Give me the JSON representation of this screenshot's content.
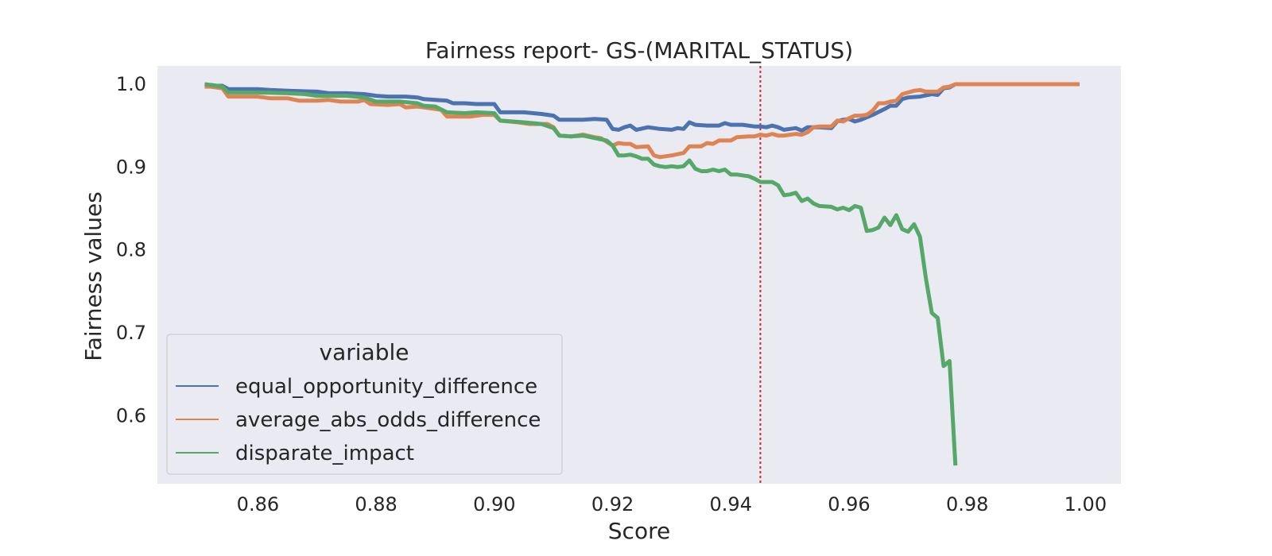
{
  "chart_data": {
    "type": "line",
    "title": "Fairness report- GS-(MARITAL_STATUS)",
    "xlabel": "Score",
    "ylabel": "Fairness values",
    "xlim": [
      0.843,
      1.006
    ],
    "ylim": [
      0.518,
      1.022
    ],
    "xticks": [
      0.86,
      0.88,
      0.9,
      0.92,
      0.94,
      0.96,
      0.98,
      1.0
    ],
    "xtick_labels": [
      "0.86",
      "0.88",
      "0.90",
      "0.92",
      "0.94",
      "0.96",
      "0.98",
      "1.00"
    ],
    "yticks": [
      0.6,
      0.7,
      0.8,
      0.9,
      1.0
    ],
    "ytick_labels": [
      "0.6",
      "0.7",
      "0.8",
      "0.9",
      "1.0"
    ],
    "grid": false,
    "background": "#eaeaf2",
    "threshold_line": {
      "x": 0.945,
      "color": "#d62728",
      "style": "dotted"
    },
    "legend": {
      "title": "variable",
      "placement": "lower-left"
    },
    "series": [
      {
        "name": "equal_opportunity_difference",
        "color": "#4c72b0",
        "points": [
          [
            0.851,
            0.999
          ],
          [
            0.852,
            0.999
          ],
          [
            0.853,
            0.998
          ],
          [
            0.854,
            0.998
          ],
          [
            0.855,
            0.994
          ],
          [
            0.86,
            0.994
          ],
          [
            0.862,
            0.993
          ],
          [
            0.865,
            0.992
          ],
          [
            0.87,
            0.991
          ],
          [
            0.872,
            0.989
          ],
          [
            0.875,
            0.989
          ],
          [
            0.878,
            0.988
          ],
          [
            0.88,
            0.986
          ],
          [
            0.882,
            0.985
          ],
          [
            0.885,
            0.985
          ],
          [
            0.887,
            0.984
          ],
          [
            0.888,
            0.982
          ],
          [
            0.89,
            0.981
          ],
          [
            0.892,
            0.98
          ],
          [
            0.893,
            0.977
          ],
          [
            0.895,
            0.977
          ],
          [
            0.897,
            0.976
          ],
          [
            0.9,
            0.976
          ],
          [
            0.901,
            0.966
          ],
          [
            0.905,
            0.966
          ],
          [
            0.908,
            0.964
          ],
          [
            0.91,
            0.962
          ],
          [
            0.911,
            0.957
          ],
          [
            0.915,
            0.957
          ],
          [
            0.917,
            0.958
          ],
          [
            0.919,
            0.957
          ],
          [
            0.92,
            0.946
          ],
          [
            0.921,
            0.945
          ],
          [
            0.922,
            0.948
          ],
          [
            0.923,
            0.95
          ],
          [
            0.924,
            0.945
          ],
          [
            0.926,
            0.948
          ],
          [
            0.928,
            0.946
          ],
          [
            0.93,
            0.945
          ],
          [
            0.931,
            0.947
          ],
          [
            0.932,
            0.946
          ],
          [
            0.933,
            0.954
          ],
          [
            0.934,
            0.951
          ],
          [
            0.936,
            0.95
          ],
          [
            0.938,
            0.95
          ],
          [
            0.939,
            0.953
          ],
          [
            0.94,
            0.951
          ],
          [
            0.942,
            0.951
          ],
          [
            0.944,
            0.949
          ],
          [
            0.945,
            0.949
          ],
          [
            0.946,
            0.948
          ],
          [
            0.947,
            0.95
          ],
          [
            0.948,
            0.948
          ],
          [
            0.949,
            0.945
          ],
          [
            0.95,
            0.946
          ],
          [
            0.951,
            0.947
          ],
          [
            0.952,
            0.944
          ],
          [
            0.953,
            0.948
          ],
          [
            0.955,
            0.948
          ],
          [
            0.957,
            0.947
          ],
          [
            0.958,
            0.955
          ],
          [
            0.959,
            0.957
          ],
          [
            0.96,
            0.958
          ],
          [
            0.961,
            0.955
          ],
          [
            0.962,
            0.957
          ],
          [
            0.963,
            0.96
          ],
          [
            0.964,
            0.963
          ],
          [
            0.966,
            0.97
          ],
          [
            0.967,
            0.974
          ],
          [
            0.968,
            0.974
          ],
          [
            0.969,
            0.982
          ],
          [
            0.97,
            0.984
          ],
          [
            0.972,
            0.985
          ],
          [
            0.974,
            0.988
          ],
          [
            0.975,
            0.987
          ],
          [
            0.976,
            0.995
          ],
          [
            0.977,
            0.996
          ],
          [
            0.978,
            1.0
          ],
          [
            0.985,
            1.0
          ],
          [
            0.99,
            1.0
          ],
          [
            0.999,
            1.0
          ]
        ]
      },
      {
        "name": "average_abs_odds_difference",
        "color": "#dd8452",
        "points": [
          [
            0.851,
            0.997
          ],
          [
            0.852,
            0.997
          ],
          [
            0.853,
            0.996
          ],
          [
            0.854,
            0.995
          ],
          [
            0.855,
            0.985
          ],
          [
            0.86,
            0.985
          ],
          [
            0.862,
            0.983
          ],
          [
            0.865,
            0.983
          ],
          [
            0.867,
            0.98
          ],
          [
            0.87,
            0.98
          ],
          [
            0.872,
            0.981
          ],
          [
            0.874,
            0.979
          ],
          [
            0.877,
            0.979
          ],
          [
            0.878,
            0.981
          ],
          [
            0.879,
            0.976
          ],
          [
            0.882,
            0.975
          ],
          [
            0.884,
            0.976
          ],
          [
            0.885,
            0.972
          ],
          [
            0.887,
            0.973
          ],
          [
            0.889,
            0.971
          ],
          [
            0.891,
            0.969
          ],
          [
            0.892,
            0.961
          ],
          [
            0.894,
            0.961
          ],
          [
            0.896,
            0.961
          ],
          [
            0.898,
            0.963
          ],
          [
            0.9,
            0.963
          ],
          [
            0.901,
            0.956
          ],
          [
            0.904,
            0.954
          ],
          [
            0.906,
            0.952
          ],
          [
            0.909,
            0.952
          ],
          [
            0.91,
            0.948
          ],
          [
            0.911,
            0.938
          ],
          [
            0.913,
            0.937
          ],
          [
            0.915,
            0.939
          ],
          [
            0.917,
            0.936
          ],
          [
            0.918,
            0.935
          ],
          [
            0.92,
            0.926
          ],
          [
            0.921,
            0.929
          ],
          [
            0.922,
            0.928
          ],
          [
            0.923,
            0.928
          ],
          [
            0.924,
            0.924
          ],
          [
            0.926,
            0.925
          ],
          [
            0.927,
            0.914
          ],
          [
            0.928,
            0.912
          ],
          [
            0.93,
            0.914
          ],
          [
            0.932,
            0.917
          ],
          [
            0.933,
            0.925
          ],
          [
            0.935,
            0.925
          ],
          [
            0.936,
            0.929
          ],
          [
            0.937,
            0.928
          ],
          [
            0.938,
            0.932
          ],
          [
            0.94,
            0.932
          ],
          [
            0.941,
            0.936
          ],
          [
            0.943,
            0.937
          ],
          [
            0.944,
            0.937
          ],
          [
            0.945,
            0.939
          ],
          [
            0.946,
            0.938
          ],
          [
            0.947,
            0.94
          ],
          [
            0.948,
            0.938
          ],
          [
            0.949,
            0.938
          ],
          [
            0.95,
            0.939
          ],
          [
            0.951,
            0.94
          ],
          [
            0.952,
            0.939
          ],
          [
            0.953,
            0.942
          ],
          [
            0.954,
            0.948
          ],
          [
            0.955,
            0.949
          ],
          [
            0.957,
            0.949
          ],
          [
            0.958,
            0.956
          ],
          [
            0.959,
            0.955
          ],
          [
            0.96,
            0.959
          ],
          [
            0.961,
            0.962
          ],
          [
            0.962,
            0.962
          ],
          [
            0.963,
            0.963
          ],
          [
            0.964,
            0.968
          ],
          [
            0.965,
            0.977
          ],
          [
            0.966,
            0.977
          ],
          [
            0.967,
            0.979
          ],
          [
            0.968,
            0.98
          ],
          [
            0.969,
            0.988
          ],
          [
            0.97,
            0.99
          ],
          [
            0.971,
            0.992
          ],
          [
            0.972,
            0.993
          ],
          [
            0.973,
            0.991
          ],
          [
            0.974,
            0.991
          ],
          [
            0.975,
            0.991
          ],
          [
            0.976,
            0.996
          ],
          [
            0.977,
            0.997
          ],
          [
            0.978,
            1.0
          ],
          [
            0.985,
            1.0
          ],
          [
            0.99,
            1.0
          ],
          [
            0.999,
            1.0
          ]
        ]
      },
      {
        "name": "disparate_impact",
        "color": "#55a868",
        "points": [
          [
            0.851,
            1.0
          ],
          [
            0.852,
            0.999
          ],
          [
            0.853,
            0.998
          ],
          [
            0.854,
            0.997
          ],
          [
            0.855,
            0.99
          ],
          [
            0.86,
            0.99
          ],
          [
            0.865,
            0.989
          ],
          [
            0.868,
            0.988
          ],
          [
            0.87,
            0.986
          ],
          [
            0.875,
            0.986
          ],
          [
            0.878,
            0.984
          ],
          [
            0.88,
            0.979
          ],
          [
            0.884,
            0.979
          ],
          [
            0.887,
            0.977
          ],
          [
            0.888,
            0.974
          ],
          [
            0.89,
            0.973
          ],
          [
            0.892,
            0.966
          ],
          [
            0.895,
            0.965
          ],
          [
            0.897,
            0.966
          ],
          [
            0.9,
            0.965
          ],
          [
            0.901,
            0.956
          ],
          [
            0.905,
            0.954
          ],
          [
            0.908,
            0.952
          ],
          [
            0.91,
            0.947
          ],
          [
            0.911,
            0.938
          ],
          [
            0.913,
            0.937
          ],
          [
            0.915,
            0.938
          ],
          [
            0.917,
            0.935
          ],
          [
            0.919,
            0.932
          ],
          [
            0.92,
            0.926
          ],
          [
            0.921,
            0.914
          ],
          [
            0.922,
            0.914
          ],
          [
            0.923,
            0.915
          ],
          [
            0.924,
            0.913
          ],
          [
            0.925,
            0.91
          ],
          [
            0.926,
            0.91
          ],
          [
            0.927,
            0.903
          ],
          [
            0.928,
            0.901
          ],
          [
            0.929,
            0.9
          ],
          [
            0.93,
            0.901
          ],
          [
            0.931,
            0.9
          ],
          [
            0.932,
            0.901
          ],
          [
            0.933,
            0.908
          ],
          [
            0.934,
            0.898
          ],
          [
            0.935,
            0.895
          ],
          [
            0.936,
            0.895
          ],
          [
            0.937,
            0.897
          ],
          [
            0.938,
            0.895
          ],
          [
            0.939,
            0.897
          ],
          [
            0.94,
            0.891
          ],
          [
            0.941,
            0.891
          ],
          [
            0.942,
            0.89
          ],
          [
            0.943,
            0.889
          ],
          [
            0.944,
            0.886
          ],
          [
            0.945,
            0.882
          ],
          [
            0.946,
            0.882
          ],
          [
            0.947,
            0.882
          ],
          [
            0.948,
            0.878
          ],
          [
            0.949,
            0.866
          ],
          [
            0.95,
            0.867
          ],
          [
            0.951,
            0.869
          ],
          [
            0.952,
            0.859
          ],
          [
            0.953,
            0.862
          ],
          [
            0.954,
            0.856
          ],
          [
            0.955,
            0.853
          ],
          [
            0.957,
            0.852
          ],
          [
            0.958,
            0.849
          ],
          [
            0.959,
            0.851
          ],
          [
            0.96,
            0.848
          ],
          [
            0.961,
            0.853
          ],
          [
            0.962,
            0.851
          ],
          [
            0.963,
            0.823
          ],
          [
            0.964,
            0.824
          ],
          [
            0.965,
            0.827
          ],
          [
            0.966,
            0.839
          ],
          [
            0.967,
            0.83
          ],
          [
            0.968,
            0.842
          ],
          [
            0.969,
            0.825
          ],
          [
            0.97,
            0.822
          ],
          [
            0.971,
            0.831
          ],
          [
            0.972,
            0.816
          ],
          [
            0.973,
            0.766
          ],
          [
            0.974,
            0.724
          ],
          [
            0.975,
            0.718
          ],
          [
            0.976,
            0.66
          ],
          [
            0.977,
            0.666
          ],
          [
            0.978,
            0.54
          ]
        ]
      }
    ]
  }
}
